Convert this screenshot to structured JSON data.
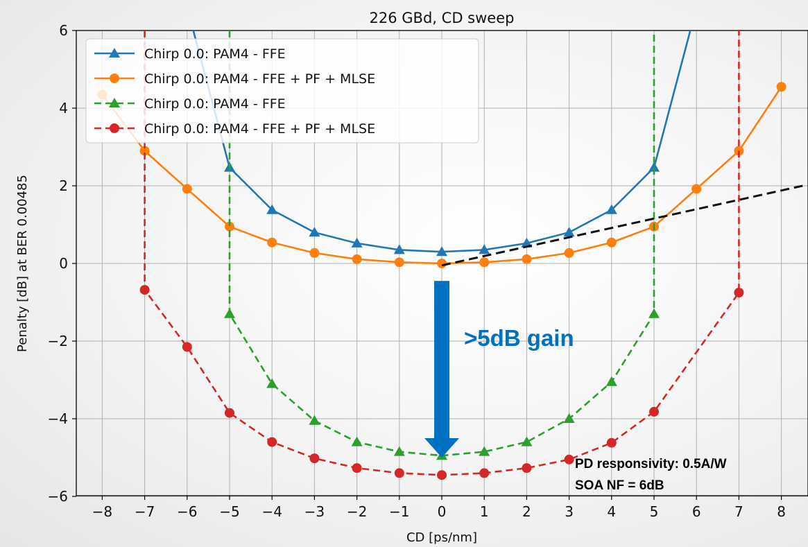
{
  "chart_data": {
    "type": "line",
    "title": "226 GBd, CD sweep",
    "xlabel": "CD [ps/nm]",
    "ylabel": "Penalty [dB] at BER 0.00485",
    "xlim": [
      -8.5,
      8.5
    ],
    "ylim": [
      -6,
      6
    ],
    "xticks": [
      -8,
      -7,
      -6,
      -5,
      -4,
      -3,
      -2,
      -1,
      0,
      1,
      2,
      3,
      4,
      5,
      6,
      7,
      8
    ],
    "yticks": [
      -6,
      -4,
      -2,
      0,
      2,
      4,
      6
    ],
    "xtick_labels": [
      "−8",
      "−7",
      "−6",
      "−5",
      "−4",
      "−3",
      "−2",
      "−1",
      "0",
      "1",
      "2",
      "3",
      "4",
      "5",
      "6",
      "7",
      "8"
    ],
    "ytick_labels": [
      "−6",
      "−4",
      "−2",
      "0",
      "2",
      "4",
      "6"
    ],
    "grid": true,
    "legend_position": "top-left",
    "series": [
      {
        "name": "Chirp 0.0: PAM4 - FFE",
        "color": "#1f77b4",
        "dash": "solid",
        "marker": "triangle",
        "x": [
          -6,
          -5,
          -4,
          -3,
          -2,
          -1,
          0,
          1,
          2,
          3,
          4,
          5,
          6
        ],
        "y": [
          6.6,
          2.47,
          1.38,
          0.8,
          0.52,
          0.35,
          0.3,
          0.35,
          0.52,
          0.8,
          1.38,
          2.47,
          6.6
        ]
      },
      {
        "name": "Chirp 0.0: PAM4 - FFE + PF + MLSE",
        "color": "#ff7f0e",
        "dash": "solid",
        "marker": "circle",
        "x": [
          -8,
          -7,
          -6,
          -5,
          -4,
          -3,
          -2,
          -1,
          0,
          1,
          2,
          3,
          4,
          5,
          6,
          7,
          8
        ],
        "y": [
          4.35,
          2.9,
          1.92,
          0.95,
          0.54,
          0.27,
          0.11,
          0.03,
          0.0,
          0.03,
          0.11,
          0.27,
          0.54,
          0.95,
          1.92,
          2.9,
          4.55
        ]
      },
      {
        "name": "Chirp 0.0: PAM4 - FFE",
        "color": "#2ca02c",
        "dash": "dashed",
        "marker": "triangle",
        "x": [
          -5,
          -5,
          -4,
          -3,
          -2,
          -1,
          0,
          1,
          2,
          3,
          4,
          5,
          5
        ],
        "y": [
          6,
          -1.3,
          -3.1,
          -4.05,
          -4.6,
          -4.85,
          -4.95,
          -4.85,
          -4.6,
          -4.0,
          -3.05,
          -1.3,
          6
        ],
        "marker_mask": [
          false,
          true,
          true,
          true,
          true,
          true,
          true,
          true,
          true,
          true,
          true,
          true,
          false
        ]
      },
      {
        "name": "Chirp 0.0: PAM4 - FFE + PF + MLSE",
        "color": "#d62728",
        "dash": "dashed",
        "marker": "circle",
        "x": [
          -7,
          -7,
          -6,
          -5,
          -4,
          -3,
          -2,
          -1,
          0,
          1,
          2,
          3,
          4,
          5,
          7,
          7
        ],
        "y": [
          6,
          -0.68,
          -2.15,
          -3.85,
          -4.6,
          -5.02,
          -5.27,
          -5.4,
          -5.45,
          -5.4,
          -5.27,
          -5.05,
          -4.62,
          -3.82,
          -0.75,
          6
        ],
        "marker_mask": [
          false,
          true,
          true,
          true,
          true,
          true,
          true,
          true,
          true,
          true,
          true,
          true,
          true,
          true,
          true,
          false
        ]
      }
    ],
    "annotations": {
      "reference_line": {
        "color": "#111111",
        "x": [
          0,
          8.5
        ],
        "y": [
          -0.05,
          2.0
        ]
      },
      "gain_arrow": {
        "color": "#0070c0",
        "x": 0,
        "y_start": -0.45,
        "y_end": -5.0
      },
      "gain_label": ">5dB gain",
      "note_line1": "PD responsivity: 0.5A/W",
      "note_line2": "SOA NF = 6dB"
    }
  }
}
